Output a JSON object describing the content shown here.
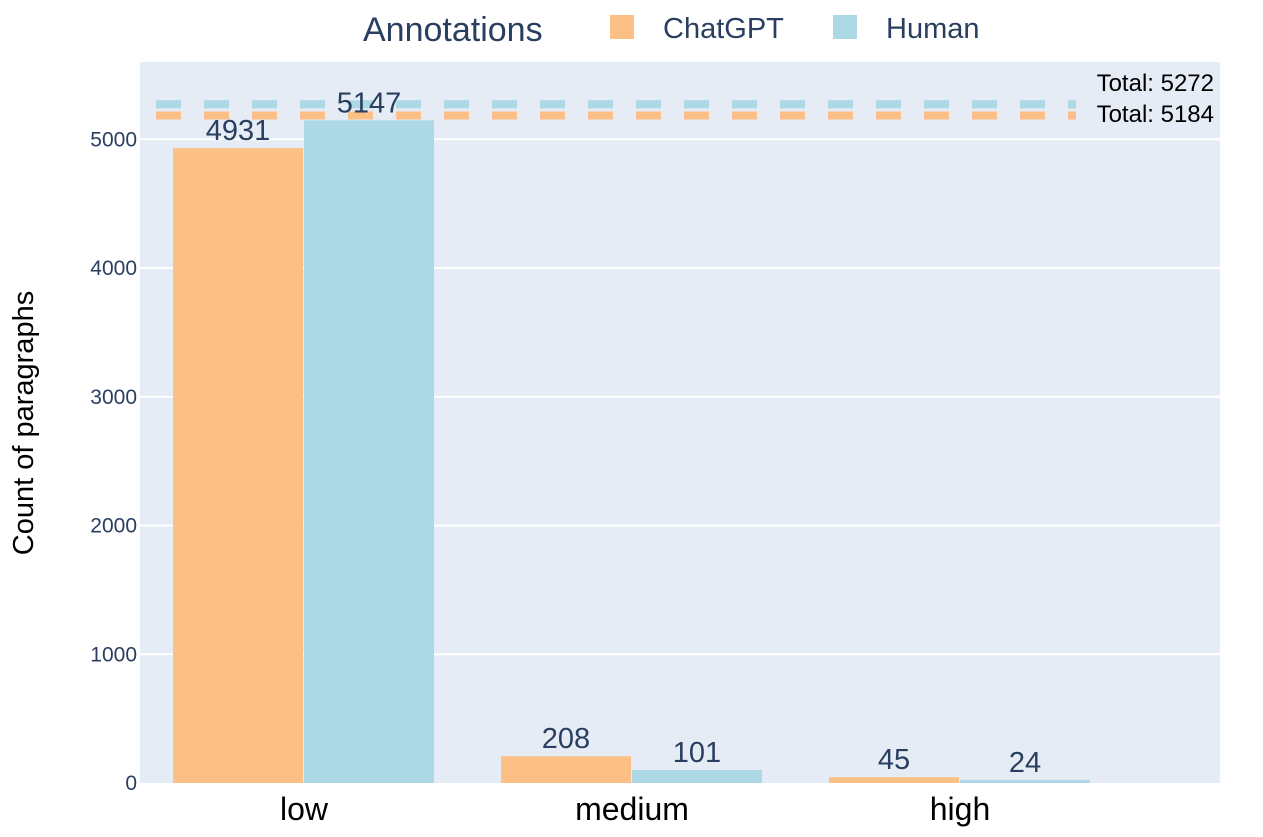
{
  "chart_data": {
    "type": "bar",
    "categories": [
      "low",
      "medium",
      "high"
    ],
    "series": [
      {
        "name": "ChatGPT",
        "values": [
          4931,
          208,
          45
        ],
        "color": "#fcbf85"
      },
      {
        "name": "Human",
        "values": [
          5147,
          101,
          24
        ],
        "color": "#add8e6"
      }
    ],
    "legend": {
      "title": "Annotations",
      "placement": "top-center"
    },
    "ylabel": "Count of paragraphs",
    "xlabel": "",
    "ylim": [
      0,
      5600
    ],
    "yticks": [
      0,
      1000,
      2000,
      3000,
      4000,
      5000
    ],
    "grid": true,
    "plot_bg": "#e5ecf6",
    "totals": [
      {
        "series": "Human",
        "value": 5272,
        "label": "Total: 5272"
      },
      {
        "series": "ChatGPT",
        "value": 5184,
        "label": "Total: 5184"
      }
    ]
  }
}
